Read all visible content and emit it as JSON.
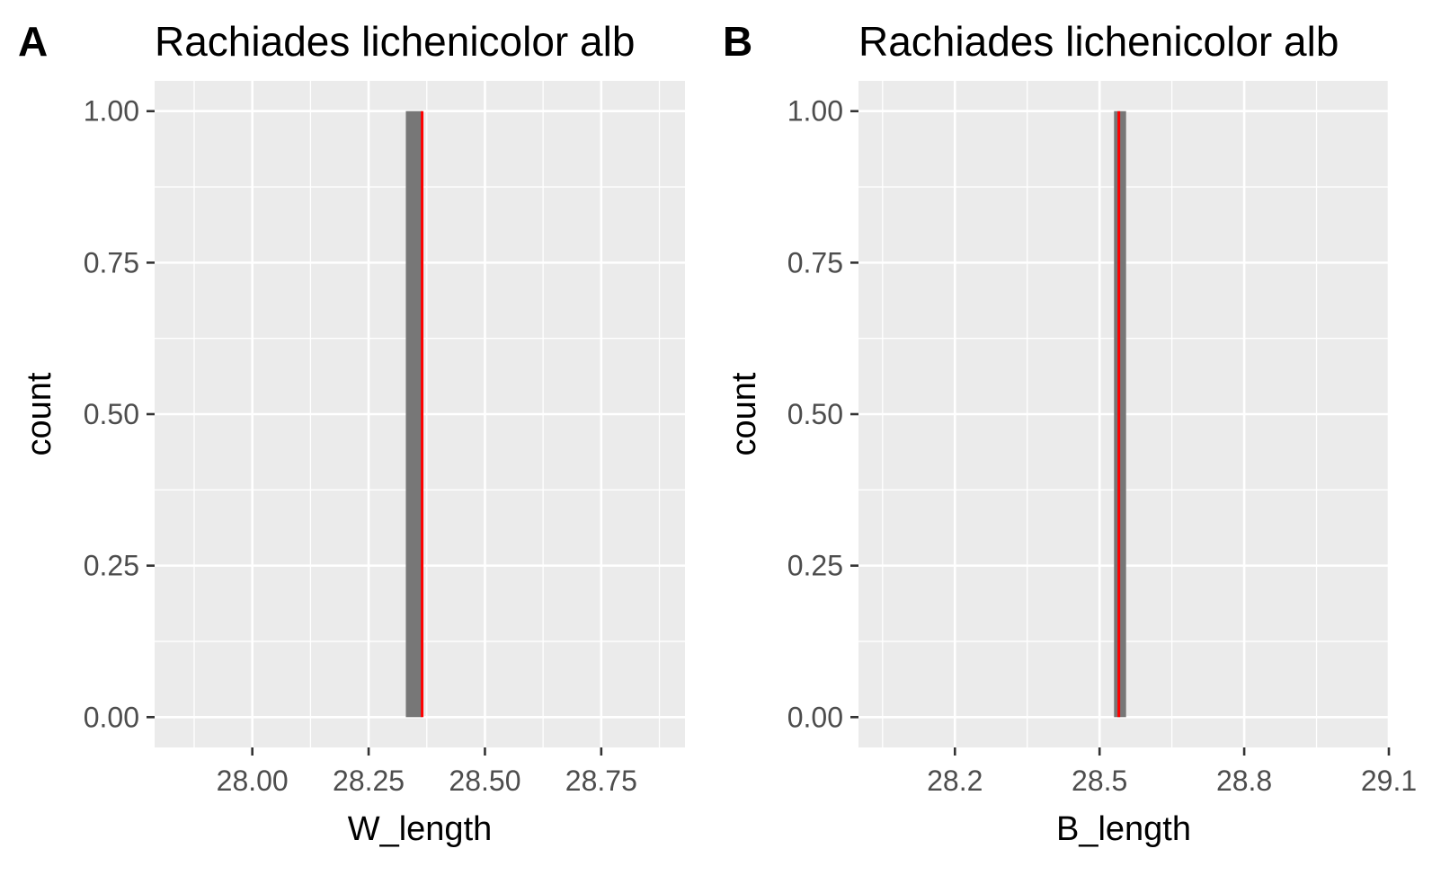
{
  "chart_data": [
    {
      "type": "bar",
      "tag": "A",
      "title": "Rachiades lichenicolor alb",
      "xlabel": "W_length",
      "ylabel": "count",
      "xlim": [
        27.79,
        28.93
      ],
      "ylim": [
        -0.05,
        1.05
      ],
      "x_ticks": [
        28.0,
        28.25,
        28.5,
        28.75
      ],
      "x_tick_labels": [
        "28.00",
        "28.25",
        "28.50",
        "28.75"
      ],
      "y_ticks": [
        0,
        0.25,
        0.5,
        0.75,
        1.0
      ],
      "y_tick_labels": [
        "0.00",
        "0.25",
        "0.50",
        "0.75",
        "1.00"
      ],
      "bars": [
        {
          "xmin": 28.33,
          "xmax": 28.365,
          "count": 1
        }
      ],
      "vline": 28.365,
      "grid": true,
      "colors": {
        "panel": "#ebebeb",
        "bar": "#777777",
        "vline": "#ff0000",
        "grid": "#ffffff"
      }
    },
    {
      "type": "bar",
      "tag": "B",
      "title": "Rachiades lichenicolor alb",
      "xlabel": "B_length",
      "ylabel": "count",
      "xlim": [
        28.0,
        29.1
      ],
      "ylim": [
        -0.05,
        1.05
      ],
      "x_ticks": [
        28.2,
        28.5,
        28.8,
        29.1
      ],
      "x_tick_labels": [
        "28.2",
        "28.5",
        "28.8",
        "29.1"
      ],
      "y_ticks": [
        0,
        0.25,
        0.5,
        0.75,
        1.0
      ],
      "y_tick_labels": [
        "0.00",
        "0.25",
        "0.50",
        "0.75",
        "1.00"
      ],
      "bars": [
        {
          "xmin": 28.53,
          "xmax": 28.555,
          "count": 1
        }
      ],
      "vline": 28.54,
      "grid": true,
      "colors": {
        "panel": "#ebebeb",
        "bar": "#777777",
        "vline": "#ff0000",
        "grid": "#ffffff"
      }
    }
  ]
}
